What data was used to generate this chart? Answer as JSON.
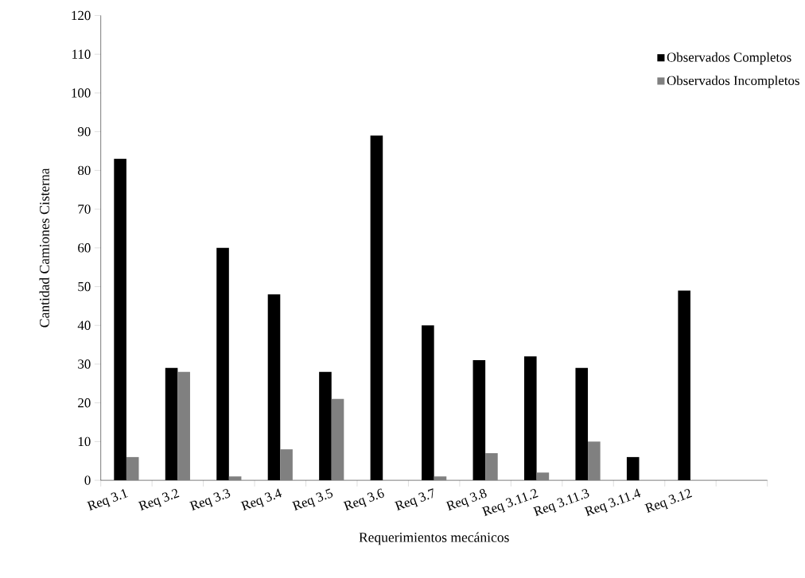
{
  "chart_data": {
    "type": "bar",
    "xlabel": "Requerimientos mecánicos",
    "ylabel": "Cantidad Camiones Cisterna",
    "categories": [
      "Req 3.1",
      "Req 3.2",
      "Req 3.3",
      "Req 3.4",
      "Req 3.5",
      "Req 3.6",
      "Req 3.7",
      "Req 3.8",
      "Req 3.11.2",
      "Req 3.11.3",
      "Req 3.11.4",
      "Req 3.12",
      null
    ],
    "series": [
      {
        "name": "Observados Completos",
        "color": "#000000",
        "values": [
          83,
          29,
          60,
          48,
          28,
          89,
          40,
          31,
          32,
          29,
          6,
          49,
          null
        ]
      },
      {
        "name": "Observados Incompletos",
        "color": "#808080",
        "values": [
          6,
          28,
          1,
          8,
          21,
          0,
          1,
          7,
          2,
          10,
          0,
          0,
          null
        ]
      }
    ],
    "ylim": [
      0,
      120
    ],
    "yticks": [
      0,
      10,
      20,
      30,
      40,
      50,
      60,
      70,
      80,
      90,
      100,
      110,
      120
    ],
    "legend": "top right",
    "grid": false
  }
}
